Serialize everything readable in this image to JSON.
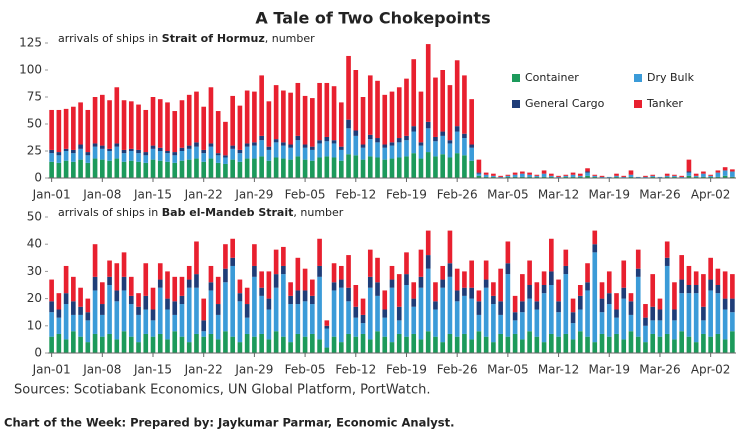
{
  "title": "A Tale of Two Chokepoints",
  "chart_data": [
    {
      "type": "stacked_bar",
      "subtitle": [
        "arrivals of ships in ",
        "Strait of Hormuz",
        ", number"
      ],
      "categories": [
        "Jan-01",
        null,
        null,
        null,
        null,
        null,
        null,
        "Jan-08",
        null,
        null,
        null,
        null,
        null,
        null,
        "Jan-15",
        null,
        null,
        null,
        null,
        null,
        null,
        "Jan-22",
        null,
        null,
        null,
        null,
        null,
        null,
        "Jan-29",
        null,
        null,
        null,
        null,
        null,
        null,
        "Feb-05",
        null,
        null,
        null,
        null,
        null,
        null,
        "Feb-12",
        null,
        null,
        null,
        null,
        null,
        null,
        "Feb-19",
        null,
        null,
        null,
        null,
        null,
        null,
        "Feb-26",
        null,
        null,
        null,
        null,
        null,
        null,
        "Mar-05",
        null,
        null,
        null,
        null,
        null,
        null,
        "Mar-12",
        null,
        null,
        null,
        null,
        null,
        null,
        "Mar-19",
        null,
        null,
        null,
        null,
        null,
        null,
        "Mar-26",
        null,
        null,
        null,
        null,
        null,
        null,
        "Apr-02",
        null,
        null,
        null
      ],
      "ylim": [
        0,
        125
      ],
      "yticks": [
        0,
        25,
        50,
        75,
        100,
        125
      ],
      "grid": false,
      "legend": "upper right",
      "series": [
        {
          "name": "Container",
          "color": "#1c9a5b",
          "values": [
            15,
            14,
            16,
            15,
            17,
            14,
            18,
            17,
            16,
            18,
            15,
            16,
            15,
            14,
            17,
            16,
            15,
            14,
            16,
            17,
            18,
            15,
            18,
            14,
            13,
            17,
            15,
            18,
            18,
            20,
            16,
            19,
            18,
            17,
            20,
            17,
            16,
            19,
            20,
            19,
            16,
            22,
            21,
            17,
            20,
            19,
            17,
            18,
            19,
            20,
            23,
            18,
            24,
            20,
            22,
            19,
            23,
            21,
            16,
            2,
            1,
            1,
            0,
            1,
            1,
            1,
            1,
            1,
            1,
            1,
            0,
            1,
            1,
            1,
            2,
            1,
            0,
            0,
            1,
            0,
            1,
            0,
            0,
            1,
            0,
            1,
            1,
            0,
            2,
            1,
            1,
            1,
            1,
            2,
            1
          ]
        },
        {
          "name": "Dry Bulk",
          "color": "#3b9bd8",
          "values": [
            8,
            7,
            9,
            8,
            10,
            7,
            11,
            10,
            9,
            11,
            8,
            9,
            8,
            7,
            10,
            9,
            8,
            7,
            9,
            10,
            11,
            8,
            11,
            7,
            6,
            10,
            8,
            11,
            12,
            15,
            10,
            14,
            12,
            11,
            15,
            11,
            10,
            13,
            14,
            13,
            10,
            24,
            18,
            11,
            16,
            14,
            11,
            12,
            14,
            15,
            20,
            12,
            22,
            14,
            17,
            13,
            20,
            16,
            12,
            2,
            2,
            1,
            1,
            1,
            2,
            3,
            2,
            1,
            3,
            1,
            1,
            1,
            2,
            1,
            3,
            1,
            1,
            1,
            1,
            1,
            2,
            1,
            1,
            1,
            1,
            1,
            1,
            1,
            3,
            1,
            3,
            1,
            4,
            5,
            5
          ]
        },
        {
          "name": "General Cargo",
          "color": "#1f3d78",
          "values": [
            3,
            3,
            2,
            3,
            4,
            3,
            3,
            3,
            2,
            3,
            3,
            2,
            3,
            3,
            3,
            3,
            2,
            3,
            3,
            3,
            4,
            3,
            3,
            2,
            2,
            3,
            3,
            3,
            3,
            4,
            3,
            3,
            3,
            3,
            4,
            3,
            3,
            3,
            4,
            3,
            3,
            8,
            5,
            3,
            4,
            4,
            3,
            3,
            4,
            4,
            5,
            3,
            6,
            4,
            4,
            3,
            5,
            4,
            3,
            1,
            0,
            0,
            0,
            0,
            0,
            0,
            0,
            0,
            0,
            0,
            0,
            0,
            0,
            0,
            1,
            0,
            0,
            0,
            0,
            0,
            0,
            0,
            0,
            0,
            0,
            0,
            0,
            0,
            1,
            0,
            0,
            0,
            0,
            0,
            0
          ]
        },
        {
          "name": "Tanker",
          "color": "#e8202f",
          "values": [
            37,
            39,
            37,
            40,
            39,
            39,
            43,
            47,
            45,
            52,
            46,
            44,
            42,
            39,
            45,
            45,
            45,
            38,
            44,
            47,
            47,
            40,
            52,
            39,
            31,
            46,
            41,
            49,
            47,
            56,
            42,
            50,
            48,
            48,
            49,
            45,
            45,
            53,
            50,
            50,
            41,
            59,
            56,
            44,
            55,
            53,
            46,
            47,
            47,
            53,
            62,
            47,
            72,
            55,
            57,
            51,
            61,
            54,
            42,
            12,
            2,
            2,
            1,
            1,
            2,
            2,
            2,
            1,
            3,
            2,
            1,
            1,
            2,
            2,
            3,
            1,
            1,
            0,
            2,
            1,
            4,
            0,
            1,
            1,
            0,
            2,
            1,
            1,
            11,
            2,
            2,
            1,
            2,
            3,
            2
          ]
        }
      ]
    },
    {
      "type": "stacked_bar",
      "subtitle": [
        "arrivals of ships in ",
        "Bab el-Mandeb Strait",
        ", number"
      ],
      "categories": [
        "Jan-01",
        null,
        null,
        null,
        null,
        null,
        null,
        "Jan-08",
        null,
        null,
        null,
        null,
        null,
        null,
        "Jan-15",
        null,
        null,
        null,
        null,
        null,
        null,
        "Jan-22",
        null,
        null,
        null,
        null,
        null,
        null,
        "Jan-29",
        null,
        null,
        null,
        null,
        null,
        null,
        "Feb-05",
        null,
        null,
        null,
        null,
        null,
        null,
        "Feb-12",
        null,
        null,
        null,
        null,
        null,
        null,
        "Feb-19",
        null,
        null,
        null,
        null,
        null,
        null,
        "Feb-26",
        null,
        null,
        null,
        null,
        null,
        null,
        "Mar-05",
        null,
        null,
        null,
        null,
        null,
        null,
        "Mar-12",
        null,
        null,
        null,
        null,
        null,
        null,
        "Mar-19",
        null,
        null,
        null,
        null,
        null,
        null,
        "Mar-26",
        null,
        null,
        null,
        null,
        null,
        null,
        "Apr-02",
        null,
        null,
        null
      ],
      "ylim": [
        0,
        50
      ],
      "yticks": [
        0,
        10,
        20,
        30,
        40,
        50
      ],
      "grid": false,
      "series": [
        {
          "color": "#1c9a5b",
          "values": [
            6,
            7,
            5,
            8,
            6,
            4,
            7,
            6,
            7,
            5,
            8,
            6,
            4,
            7,
            6,
            7,
            5,
            8,
            6,
            4,
            7,
            6,
            7,
            5,
            8,
            6,
            4,
            7,
            6,
            7,
            5,
            8,
            6,
            4,
            7,
            6,
            7,
            5,
            2,
            6,
            4,
            7,
            6,
            7,
            5,
            8,
            6,
            4,
            7,
            6,
            7,
            5,
            8,
            6,
            4,
            7,
            6,
            7,
            5,
            8,
            6,
            4,
            7,
            6,
            7,
            5,
            8,
            6,
            4,
            7,
            6,
            7,
            5,
            8,
            6,
            4,
            7,
            6,
            7,
            5,
            8,
            6,
            4,
            7,
            6,
            7,
            5,
            8,
            6,
            4,
            7,
            6,
            7,
            5,
            8
          ]
        },
        {
          "color": "#3b9bd8",
          "values": [
            9,
            6,
            13,
            6,
            8,
            8,
            16,
            8,
            18,
            14,
            15,
            12,
            10,
            9,
            6,
            17,
            11,
            6,
            12,
            20,
            17,
            2,
            16,
            9,
            18,
            26,
            15,
            6,
            22,
            14,
            11,
            16,
            23,
            14,
            11,
            13,
            11,
            23,
            7,
            17,
            20,
            12,
            7,
            4,
            19,
            13,
            7,
            20,
            5,
            19,
            10,
            19,
            23,
            10,
            20,
            21,
            13,
            14,
            15,
            6,
            18,
            14,
            7,
            23,
            5,
            10,
            12,
            10,
            18,
            18,
            9,
            22,
            6,
            8,
            17,
            33,
            8,
            12,
            6,
            15,
            6,
            22,
            6,
            5,
            6,
            25,
            7,
            14,
            16,
            18,
            5,
            17,
            15,
            11,
            7
          ]
        },
        {
          "color": "#1f3d78",
          "values": [
            4,
            3,
            4,
            5,
            3,
            3,
            5,
            4,
            3,
            4,
            5,
            3,
            3,
            5,
            4,
            3,
            4,
            5,
            3,
            3,
            5,
            4,
            3,
            4,
            5,
            3,
            3,
            5,
            4,
            3,
            4,
            5,
            3,
            3,
            5,
            4,
            3,
            4,
            1,
            3,
            3,
            5,
            4,
            3,
            4,
            5,
            3,
            3,
            5,
            4,
            3,
            4,
            5,
            3,
            3,
            5,
            4,
            3,
            4,
            5,
            3,
            3,
            5,
            4,
            3,
            4,
            5,
            3,
            3,
            5,
            4,
            3,
            4,
            5,
            3,
            3,
            5,
            4,
            3,
            4,
            5,
            3,
            3,
            5,
            4,
            3,
            4,
            5,
            3,
            3,
            5,
            4,
            3,
            4,
            5
          ]
        },
        {
          "color": "#e8202f",
          "values": [
            8,
            6,
            10,
            9,
            7,
            5,
            12,
            8,
            6,
            10,
            9,
            7,
            5,
            12,
            8,
            6,
            10,
            9,
            7,
            5,
            12,
            8,
            6,
            10,
            9,
            7,
            5,
            6,
            8,
            6,
            10,
            9,
            7,
            5,
            12,
            8,
            6,
            10,
            2,
            7,
            5,
            12,
            8,
            6,
            10,
            9,
            7,
            5,
            12,
            8,
            6,
            10,
            9,
            7,
            5,
            12,
            8,
            6,
            10,
            4,
            7,
            5,
            12,
            8,
            6,
            10,
            9,
            7,
            5,
            12,
            8,
            6,
            5,
            4,
            7,
            5,
            6,
            8,
            6,
            10,
            3,
            7,
            5,
            12,
            4,
            6,
            10,
            9,
            7,
            5,
            12,
            8,
            6,
            10,
            9
          ]
        }
      ]
    }
  ],
  "source": "Sources: Scotiabank Economics, UN Global Platform, PortWatch.",
  "footer": "Chart of the Week: Prepared by: Jaykumar Parmar, Economic Analyst."
}
